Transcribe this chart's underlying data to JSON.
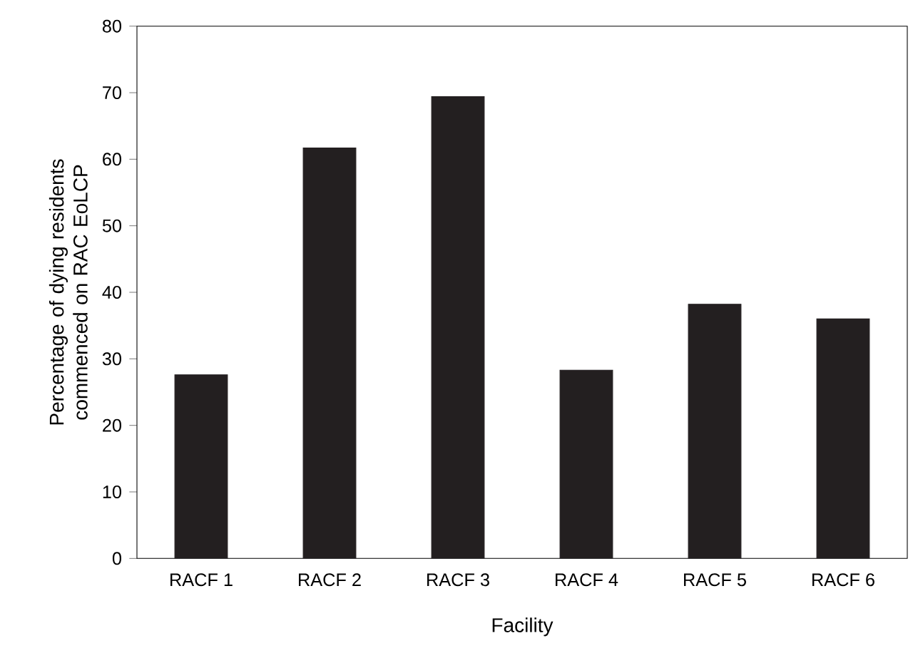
{
  "chart_data": {
    "type": "bar",
    "xlabel": "Facility",
    "ylabel": "Percentage of dying residents commenced on RAC EoLCP",
    "categories": [
      "RACF 1",
      "RACF 2",
      "RACF 3",
      "RACF 4",
      "RACF 5",
      "RACF 6"
    ],
    "values": [
      27.6,
      61.7,
      69.4,
      28.3,
      38.2,
      36.0
    ],
    "color": "#231f20",
    "ylim": [
      0,
      80
    ],
    "yticks": [
      0,
      10,
      20,
      30,
      40,
      50,
      60,
      70,
      80
    ]
  }
}
